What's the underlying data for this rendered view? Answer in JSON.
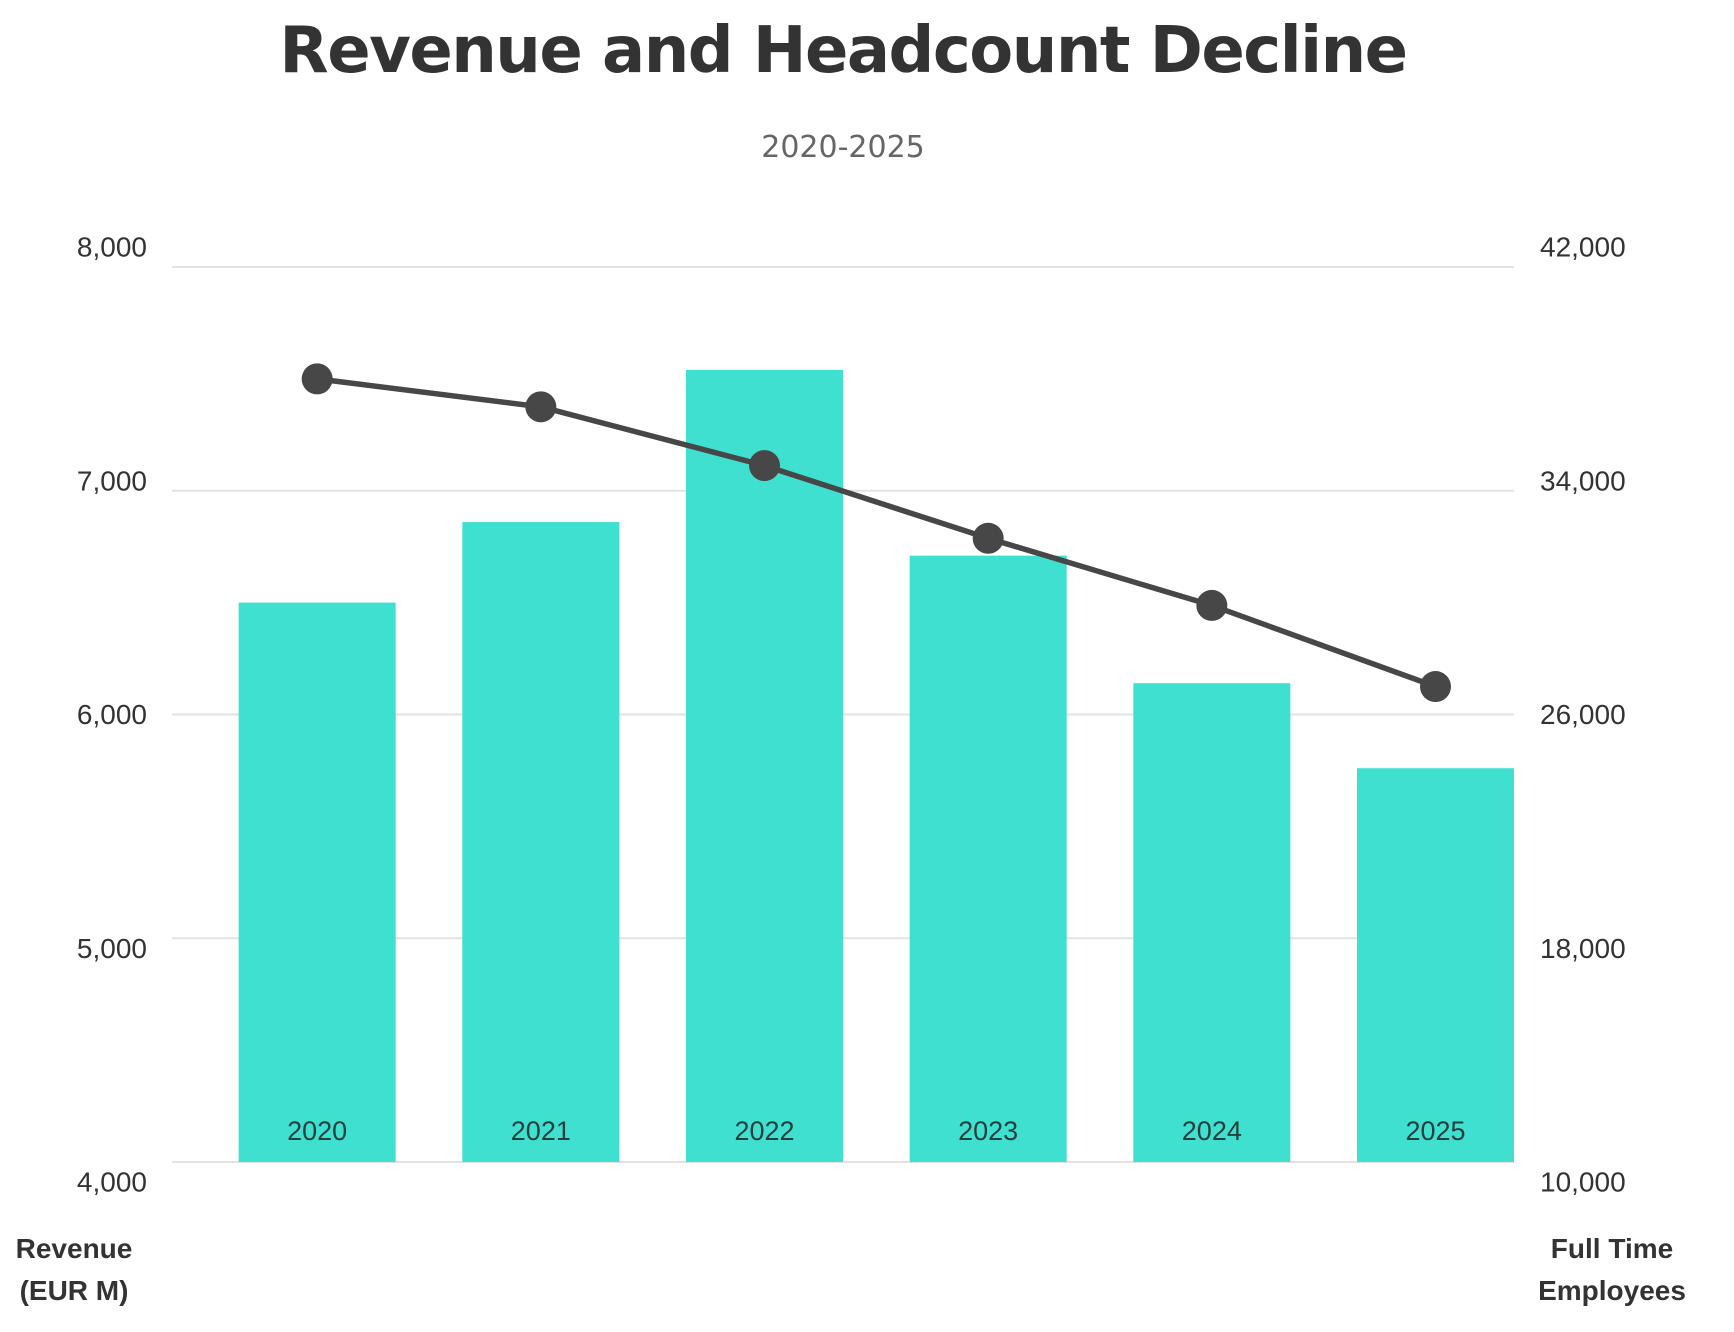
{
  "chart_data": {
    "type": "bar+line",
    "title": "Revenue and Headcount Decline",
    "subtitle": "2020-2025",
    "categories": [
      "2020",
      "2021",
      "2022",
      "2023",
      "2024",
      "2025"
    ],
    "series": [
      {
        "name": "Revenue (EUR M)",
        "type": "bar",
        "axis": "left",
        "color": "#40E0D0",
        "values": [
          6500,
          6860,
          7540,
          6710,
          6140,
          5760
        ]
      },
      {
        "name": "Full Time Employees",
        "type": "line",
        "axis": "right",
        "color": "#474747",
        "values": [
          38000,
          37000,
          34900,
          32300,
          29900,
          27000
        ]
      }
    ],
    "left_axis": {
      "title_lines": [
        "Revenue",
        "(EUR M)"
      ],
      "ylim": [
        4000,
        8000
      ],
      "ticks": [
        8000,
        7000,
        6000,
        5000,
        4000
      ],
      "tick_labels": [
        "8,000",
        "7,000",
        "6,000",
        "5,000",
        "4,000"
      ]
    },
    "right_axis": {
      "title_lines": [
        "Full Time",
        "Employees"
      ],
      "ylim": [
        10000,
        42000
      ],
      "ticks": [
        42000,
        34000,
        26000,
        18000,
        10000
      ],
      "tick_labels": [
        "42,000",
        "34,000",
        "26,000",
        "18,000",
        "10,000"
      ]
    },
    "grid": true,
    "category_labels_position": "inside-bar-bottom",
    "colors": {
      "bar": "#40E0D0",
      "line": "#474747",
      "grid": "#e2e2e2",
      "text": "#333333",
      "subtitle": "#666666"
    }
  }
}
